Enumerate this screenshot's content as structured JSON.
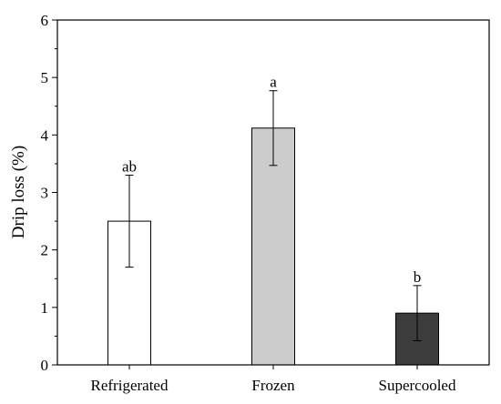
{
  "chart_data": {
    "type": "bar",
    "title": "",
    "xlabel": "",
    "ylabel": "Drip loss (%)",
    "ylim": [
      0,
      6
    ],
    "yticks": [
      "0",
      "1",
      "2",
      "3",
      "4",
      "5",
      "6"
    ],
    "categories": [
      "Refrigerated",
      "Frozen",
      "Supercooled"
    ],
    "values": [
      2.5,
      4.12,
      0.9
    ],
    "errors": [
      0.8,
      0.65,
      0.48
    ],
    "significance": [
      "ab",
      "a",
      "b"
    ],
    "bar_colors": [
      "#ffffff",
      "#cccccc",
      "#3c3c3c"
    ],
    "edge_color": "#000000",
    "grid": false,
    "legend": "none"
  }
}
